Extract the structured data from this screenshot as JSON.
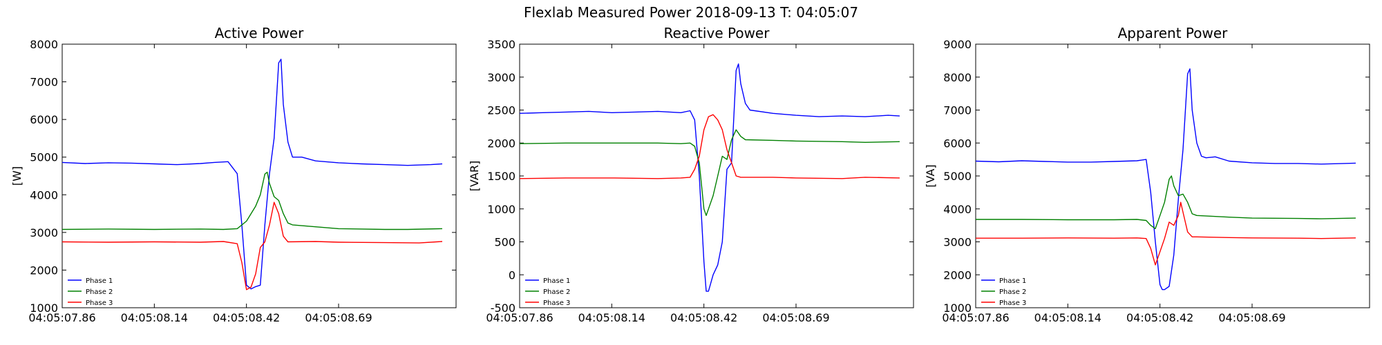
{
  "figure": {
    "title": "Flexlab Measured Power 2018-09-13 T: 04:05:07"
  },
  "chart_data": [
    {
      "type": "line",
      "title": "Active Power",
      "xlabel": "",
      "ylabel": "[W]",
      "ylim": [
        1000,
        8000
      ],
      "yticks": [
        1000,
        2000,
        3000,
        4000,
        5000,
        6000,
        7000,
        8000
      ],
      "xlim": [
        0,
        171
      ],
      "xticks": [
        0,
        40,
        80,
        120
      ],
      "xtick_labels": [
        "04:05:07.86",
        "04:05:08.14",
        "04:05:08.42",
        "04:05:08.69"
      ],
      "grid": false,
      "legend": "lower-left",
      "series": [
        {
          "name": "Phase 1",
          "color": "#0000ff",
          "points": [
            [
              0,
              4860
            ],
            [
              10,
              4830
            ],
            [
              20,
              4850
            ],
            [
              30,
              4840
            ],
            [
              40,
              4820
            ],
            [
              50,
              4800
            ],
            [
              60,
              4830
            ],
            [
              66,
              4860
            ],
            [
              72,
              4880
            ],
            [
              76,
              4560
            ],
            [
              78,
              3200
            ],
            [
              80,
              1600
            ],
            [
              82,
              1500
            ],
            [
              84,
              1560
            ],
            [
              86,
              1600
            ],
            [
              88,
              3200
            ],
            [
              90,
              4560
            ],
            [
              92,
              5500
            ],
            [
              94,
              7500
            ],
            [
              95,
              7600
            ],
            [
              96,
              6400
            ],
            [
              98,
              5400
            ],
            [
              100,
              5000
            ],
            [
              104,
              5000
            ],
            [
              110,
              4900
            ],
            [
              120,
              4850
            ],
            [
              130,
              4820
            ],
            [
              140,
              4800
            ],
            [
              150,
              4780
            ],
            [
              160,
              4800
            ],
            [
              165,
              4820
            ]
          ]
        },
        {
          "name": "Phase 2",
          "color": "#008000",
          "points": [
            [
              0,
              3080
            ],
            [
              20,
              3090
            ],
            [
              40,
              3080
            ],
            [
              60,
              3090
            ],
            [
              70,
              3080
            ],
            [
              76,
              3100
            ],
            [
              80,
              3300
            ],
            [
              84,
              3700
            ],
            [
              86,
              4000
            ],
            [
              88,
              4550
            ],
            [
              89,
              4600
            ],
            [
              90,
              4300
            ],
            [
              92,
              3950
            ],
            [
              94,
              3850
            ],
            [
              96,
              3500
            ],
            [
              98,
              3250
            ],
            [
              100,
              3200
            ],
            [
              110,
              3150
            ],
            [
              120,
              3100
            ],
            [
              140,
              3080
            ],
            [
              150,
              3080
            ],
            [
              165,
              3100
            ]
          ]
        },
        {
          "name": "Phase 3",
          "color": "#ff0000",
          "points": [
            [
              0,
              2750
            ],
            [
              20,
              2740
            ],
            [
              40,
              2750
            ],
            [
              60,
              2740
            ],
            [
              70,
              2760
            ],
            [
              76,
              2700
            ],
            [
              78,
              2200
            ],
            [
              80,
              1480
            ],
            [
              82,
              1550
            ],
            [
              84,
              1900
            ],
            [
              86,
              2600
            ],
            [
              88,
              2750
            ],
            [
              90,
              3200
            ],
            [
              92,
              3800
            ],
            [
              94,
              3500
            ],
            [
              96,
              2900
            ],
            [
              98,
              2750
            ],
            [
              110,
              2760
            ],
            [
              120,
              2740
            ],
            [
              140,
              2730
            ],
            [
              155,
              2720
            ],
            [
              165,
              2760
            ]
          ]
        }
      ]
    },
    {
      "type": "line",
      "title": "Reactive Power",
      "xlabel": "",
      "ylabel": "[VAR]",
      "ylim": [
        -500,
        3500
      ],
      "yticks": [
        -500,
        0,
        500,
        1000,
        1500,
        2000,
        2500,
        3000,
        3500
      ],
      "xlim": [
        0,
        171
      ],
      "xticks": [
        0,
        40,
        80,
        120
      ],
      "xtick_labels": [
        "04:05:07.86",
        "04:05:08.14",
        "04:05:08.42",
        "04:05:08.69"
      ],
      "grid": false,
      "legend": "lower-left",
      "series": [
        {
          "name": "Phase 1",
          "color": "#0000ff",
          "points": [
            [
              0,
              2450
            ],
            [
              10,
              2460
            ],
            [
              20,
              2470
            ],
            [
              30,
              2480
            ],
            [
              40,
              2460
            ],
            [
              50,
              2470
            ],
            [
              60,
              2480
            ],
            [
              70,
              2460
            ],
            [
              74,
              2490
            ],
            [
              76,
              2350
            ],
            [
              78,
              1500
            ],
            [
              80,
              200
            ],
            [
              81,
              -250
            ],
            [
              82,
              -250
            ],
            [
              84,
              0
            ],
            [
              86,
              150
            ],
            [
              88,
              500
            ],
            [
              90,
              1600
            ],
            [
              92,
              1700
            ],
            [
              94,
              3100
            ],
            [
              95,
              3200
            ],
            [
              96,
              2900
            ],
            [
              98,
              2600
            ],
            [
              100,
              2500
            ],
            [
              110,
              2450
            ],
            [
              120,
              2420
            ],
            [
              130,
              2400
            ],
            [
              140,
              2410
            ],
            [
              150,
              2400
            ],
            [
              160,
              2420
            ],
            [
              165,
              2410
            ]
          ]
        },
        {
          "name": "Phase 2",
          "color": "#008000",
          "points": [
            [
              0,
              1990
            ],
            [
              20,
              2000
            ],
            [
              40,
              2000
            ],
            [
              60,
              2000
            ],
            [
              70,
              1990
            ],
            [
              74,
              2000
            ],
            [
              76,
              1950
            ],
            [
              78,
              1700
            ],
            [
              80,
              1000
            ],
            [
              81,
              900
            ],
            [
              82,
              1000
            ],
            [
              84,
              1200
            ],
            [
              86,
              1500
            ],
            [
              88,
              1800
            ],
            [
              90,
              1750
            ],
            [
              92,
              2050
            ],
            [
              94,
              2200
            ],
            [
              96,
              2100
            ],
            [
              98,
              2050
            ],
            [
              110,
              2040
            ],
            [
              120,
              2030
            ],
            [
              140,
              2020
            ],
            [
              150,
              2010
            ],
            [
              165,
              2020
            ]
          ]
        },
        {
          "name": "Phase 3",
          "color": "#ff0000",
          "points": [
            [
              0,
              1460
            ],
            [
              20,
              1470
            ],
            [
              40,
              1470
            ],
            [
              60,
              1460
            ],
            [
              70,
              1470
            ],
            [
              74,
              1480
            ],
            [
              76,
              1600
            ],
            [
              78,
              1800
            ],
            [
              80,
              2200
            ],
            [
              82,
              2400
            ],
            [
              84,
              2430
            ],
            [
              86,
              2350
            ],
            [
              88,
              2200
            ],
            [
              90,
              1900
            ],
            [
              92,
              1700
            ],
            [
              94,
              1500
            ],
            [
              96,
              1480
            ],
            [
              110,
              1480
            ],
            [
              120,
              1470
            ],
            [
              140,
              1460
            ],
            [
              150,
              1480
            ],
            [
              165,
              1470
            ]
          ]
        }
      ]
    },
    {
      "type": "line",
      "title": "Apparent Power",
      "xlabel": "",
      "ylabel": "[VA]",
      "ylim": [
        1000,
        9000
      ],
      "yticks": [
        1000,
        2000,
        3000,
        4000,
        5000,
        6000,
        7000,
        8000,
        9000
      ],
      "xlim": [
        0,
        171
      ],
      "xticks": [
        0,
        40,
        80,
        120
      ],
      "xtick_labels": [
        "04:05:07.86",
        "04:05:08.14",
        "04:05:08.42",
        "04:05:08.69"
      ],
      "grid": false,
      "legend": "lower-left",
      "series": [
        {
          "name": "Phase 1",
          "color": "#0000ff",
          "points": [
            [
              0,
              5450
            ],
            [
              10,
              5430
            ],
            [
              20,
              5460
            ],
            [
              30,
              5440
            ],
            [
              40,
              5420
            ],
            [
              50,
              5420
            ],
            [
              60,
              5440
            ],
            [
              70,
              5460
            ],
            [
              74,
              5500
            ],
            [
              76,
              4500
            ],
            [
              78,
              3000
            ],
            [
              80,
              1700
            ],
            [
              81,
              1550
            ],
            [
              82,
              1550
            ],
            [
              84,
              1650
            ],
            [
              86,
              2600
            ],
            [
              88,
              4300
            ],
            [
              90,
              5800
            ],
            [
              92,
              8100
            ],
            [
              93,
              8250
            ],
            [
              94,
              7000
            ],
            [
              96,
              6000
            ],
            [
              98,
              5600
            ],
            [
              100,
              5550
            ],
            [
              104,
              5580
            ],
            [
              110,
              5450
            ],
            [
              120,
              5400
            ],
            [
              130,
              5380
            ],
            [
              140,
              5380
            ],
            [
              150,
              5360
            ],
            [
              160,
              5380
            ],
            [
              165,
              5390
            ]
          ]
        },
        {
          "name": "Phase 2",
          "color": "#008000",
          "points": [
            [
              0,
              3680
            ],
            [
              20,
              3680
            ],
            [
              40,
              3670
            ],
            [
              60,
              3670
            ],
            [
              70,
              3680
            ],
            [
              74,
              3650
            ],
            [
              76,
              3500
            ],
            [
              78,
              3400
            ],
            [
              80,
              3800
            ],
            [
              82,
              4200
            ],
            [
              84,
              4900
            ],
            [
              85,
              5000
            ],
            [
              86,
              4700
            ],
            [
              88,
              4400
            ],
            [
              90,
              4450
            ],
            [
              92,
              4200
            ],
            [
              94,
              3850
            ],
            [
              96,
              3800
            ],
            [
              110,
              3750
            ],
            [
              120,
              3720
            ],
            [
              140,
              3710
            ],
            [
              150,
              3700
            ],
            [
              165,
              3720
            ]
          ]
        },
        {
          "name": "Phase 3",
          "color": "#ff0000",
          "points": [
            [
              0,
              3110
            ],
            [
              20,
              3110
            ],
            [
              40,
              3120
            ],
            [
              60,
              3110
            ],
            [
              70,
              3120
            ],
            [
              74,
              3100
            ],
            [
              76,
              2800
            ],
            [
              78,
              2300
            ],
            [
              80,
              2700
            ],
            [
              82,
              3100
            ],
            [
              84,
              3600
            ],
            [
              86,
              3500
            ],
            [
              88,
              3800
            ],
            [
              89,
              4200
            ],
            [
              90,
              3900
            ],
            [
              92,
              3300
            ],
            [
              94,
              3150
            ],
            [
              96,
              3150
            ],
            [
              110,
              3130
            ],
            [
              120,
              3120
            ],
            [
              140,
              3110
            ],
            [
              150,
              3100
            ],
            [
              165,
              3120
            ]
          ]
        }
      ]
    }
  ]
}
